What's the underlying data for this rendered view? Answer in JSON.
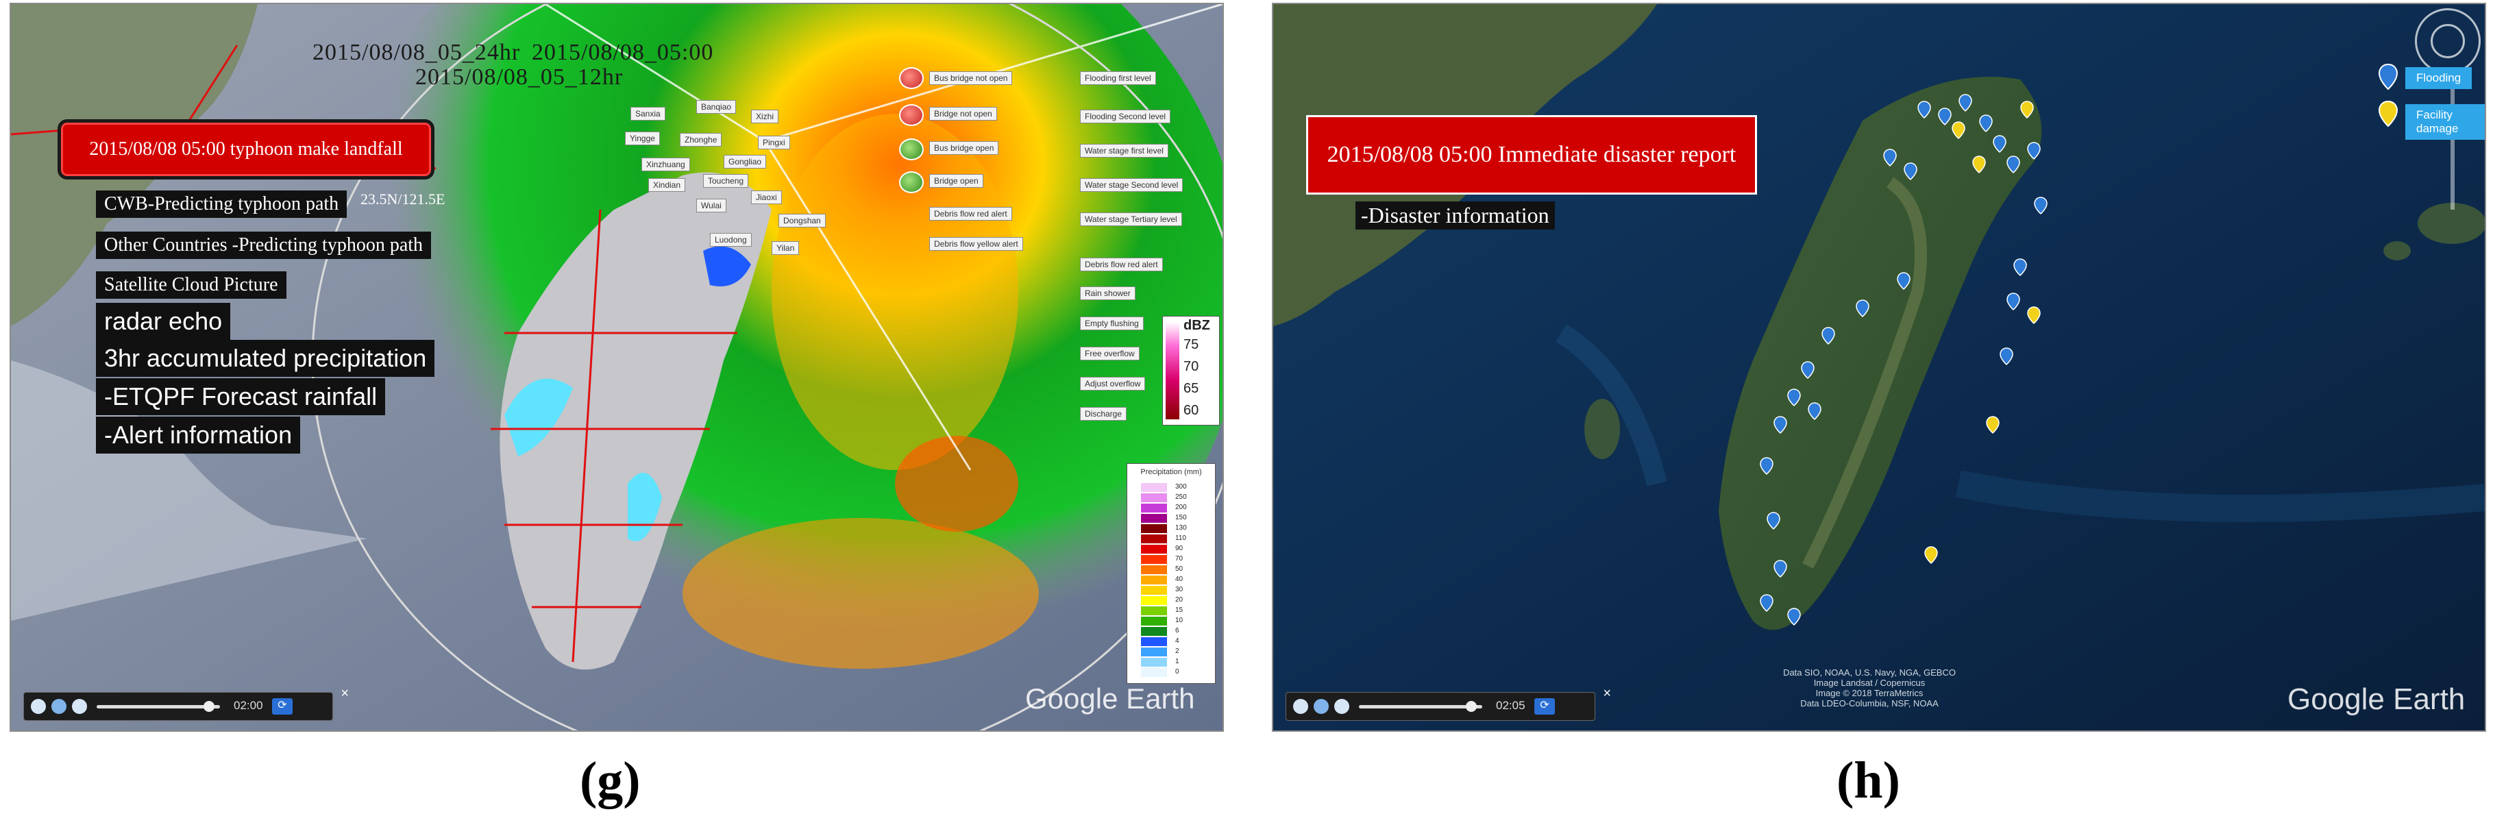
{
  "panel_g": {
    "caption": "(g)",
    "time_labels": [
      "2015/08/08_05_24hr",
      "2015/08/08_05:00",
      "2015/08/08_05_12hr"
    ],
    "event_box": "2015/08/08 05:00  typhoon make landfall",
    "layers": [
      "CWB-Predicting typhoon path",
      "Other Countries -Predicting typhoon path",
      "Satellite Cloud Picture",
      "radar echo",
      "3hr accumulated precipitation",
      "-ETQPF Forecast rainfall",
      "-Alert information"
    ],
    "coords_text": "23.5N/121.5E",
    "town_labels": [
      "Sanxia",
      "Banqiao",
      "Xizhi",
      "Yingge",
      "Zhonghe",
      "Pingxi",
      "Xinzhuang",
      "Gongliao",
      "Xindian",
      "Toucheng",
      "Jiaoxi",
      "Wulai",
      "Dongshan",
      "Luodong",
      "Yilan"
    ],
    "legend_buttons": [
      "Bus bridge not open",
      "Bridge not open",
      "Bus bridge open",
      "Bridge open",
      "Debris flow red alert",
      "Debris flow yellow alert",
      "Flooding first level",
      "Flooding Second level",
      "Water stage first level",
      "Water stage Second level",
      "Water stage Tertiary level",
      "Debris flow red alert",
      "Rain shower",
      "Empty flushing",
      "Free overflow",
      "Adjust overflow",
      "Discharge"
    ],
    "dbz": {
      "unit": "dBZ",
      "ticks": [
        "75",
        "70",
        "65",
        "60"
      ]
    },
    "precip_legend": {
      "title": "Precipitation (mm)",
      "values": [
        "300",
        "250",
        "200",
        "150",
        "130",
        "110",
        "90",
        "70",
        "50",
        "40",
        "30",
        "20",
        "15",
        "10",
        "6",
        "4",
        "2",
        "1",
        "0"
      ],
      "colors": [
        "#f3c8f7",
        "#e78ef0",
        "#c73bd9",
        "#a0008c",
        "#7f0000",
        "#b00000",
        "#e00000",
        "#ff3300",
        "#ff7700",
        "#ffaa00",
        "#ffd300",
        "#ffff00",
        "#7ad000",
        "#30b000",
        "#11891f",
        "#1f56ff",
        "#3aa2ff",
        "#8fd6ff",
        "#e8f6ff"
      ]
    },
    "player": {
      "time": "02:00",
      "refresh": "⟳",
      "close": "×"
    },
    "watermark": "Google Earth"
  },
  "panel_h": {
    "caption": "(h)",
    "report_box": "2015/08/08 05:00 Immediate disaster report",
    "disaster_info": "-Disaster information",
    "legend": [
      {
        "label": "Flooding",
        "color": "#2e7bd8"
      },
      {
        "label": "Facility damage",
        "color": "#f1d11a"
      }
    ],
    "attribution": [
      "Data SIO, NOAA, U.S. Navy, NGA, GEBCO",
      "Image Landsat / Copernicus",
      "Image © 2018 TerraMetrics",
      "Data LDEO-Columbia, NSF, NOAA"
    ],
    "player": {
      "time": "02:05",
      "refresh": "⟳",
      "close": "×"
    },
    "watermark": "Google Earth"
  },
  "colors": {
    "alert_red": "#d10000",
    "flood_marker": "#2e7bd8",
    "damage_marker": "#f1d11a"
  }
}
